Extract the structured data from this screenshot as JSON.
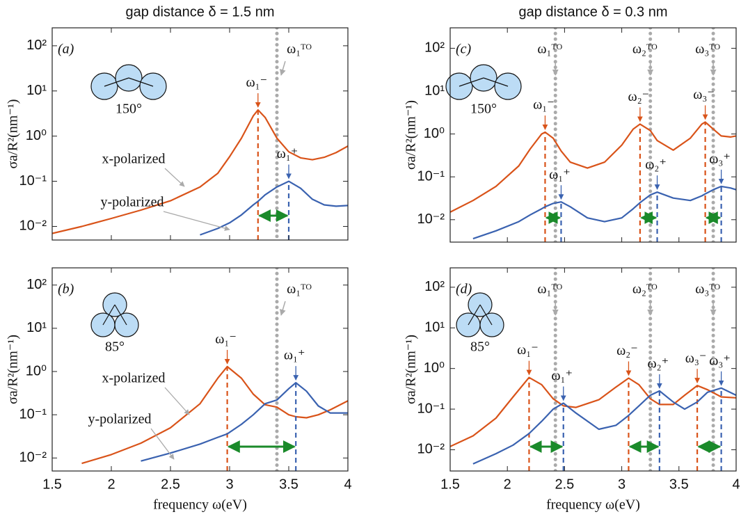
{
  "chart_data": [
    {
      "type": "line",
      "title": "gap distance δ = 1.5 nm",
      "panel_label": "(a)",
      "inset_angle": "150°",
      "y_label": "σa/R²(nm⁻¹)",
      "log_y": true,
      "xlim": [
        1.5,
        4
      ],
      "ylim": [
        0.005,
        250
      ],
      "yticks": [
        {
          "value": 0.01,
          "label": "10⁻²"
        },
        {
          "value": 0.1,
          "label": "10⁻¹"
        },
        {
          "value": 1,
          "label": "10⁰"
        },
        {
          "value": 10,
          "label": "10¹"
        },
        {
          "value": 100,
          "label": "10²"
        }
      ],
      "x": [
        1.5,
        1.75,
        2,
        2.25,
        2.5,
        2.75,
        2.9,
        3.0,
        3.1,
        3.2,
        3.24,
        3.3,
        3.4,
        3.5,
        3.6,
        3.7,
        3.8,
        3.9,
        4.0
      ],
      "series": [
        {
          "name": "x-polarized",
          "color": "#d95319",
          "values": [
            0.007,
            0.01,
            0.015,
            0.023,
            0.037,
            0.075,
            0.15,
            0.35,
            0.9,
            2.8,
            3.8,
            2.6,
            0.9,
            0.45,
            0.33,
            0.3,
            0.34,
            0.43,
            0.6
          ],
          "peaks": [
            {
              "label": "ω₁⁻",
              "x": 3.24,
              "value": 3.8
            }
          ]
        },
        {
          "name": "y-polarized",
          "color": "#3a62b0",
          "values": [
            null,
            null,
            null,
            null,
            null,
            0.0065,
            0.009,
            0.012,
            0.018,
            0.03,
            0.036,
            0.05,
            0.075,
            0.1,
            0.07,
            0.04,
            0.03,
            0.028,
            0.029
          ],
          "peaks": [
            {
              "label": "ω₁⁺",
              "x": 3.5,
              "value": 0.1
            }
          ]
        }
      ],
      "to_lines": [
        {
          "label": "ω₁ᵀᴼ",
          "x": 3.4
        }
      ]
    },
    {
      "type": "line",
      "panel_label": "(b)",
      "inset_angle": "85°",
      "y_label": "σa/R²(nm⁻¹)",
      "x_label": "frequency ω(eV)",
      "log_y": true,
      "xlim": [
        1.5,
        4
      ],
      "ylim": [
        0.005,
        250
      ],
      "xticks": [
        1.5,
        2,
        2.5,
        3,
        3.5,
        4
      ],
      "yticks": [
        {
          "value": 0.01,
          "label": "10⁻²"
        },
        {
          "value": 0.1,
          "label": "10⁻¹"
        },
        {
          "value": 1,
          "label": "10⁰"
        },
        {
          "value": 10,
          "label": "10¹"
        },
        {
          "value": 100,
          "label": "10²"
        }
      ],
      "x": [
        1.5,
        1.75,
        2,
        2.25,
        2.5,
        2.75,
        2.9,
        2.98,
        3.1,
        3.2,
        3.3,
        3.4,
        3.5,
        3.56,
        3.65,
        3.75,
        3.85,
        4.0
      ],
      "series": [
        {
          "name": "x-polarized",
          "color": "#d95319",
          "values": [
            null,
            0.0075,
            0.012,
            0.022,
            0.05,
            0.18,
            0.7,
            1.3,
            0.7,
            0.3,
            0.17,
            0.15,
            0.1,
            0.09,
            0.085,
            0.1,
            0.13,
            0.21
          ],
          "peaks": [
            {
              "label": "ω₁⁻",
              "x": 2.98,
              "value": 1.3
            }
          ]
        },
        {
          "name": "y-polarized",
          "color": "#3a62b0",
          "values": [
            null,
            null,
            null,
            0.0085,
            0.013,
            0.021,
            0.03,
            0.036,
            0.06,
            0.1,
            0.18,
            0.22,
            0.4,
            0.55,
            0.35,
            0.16,
            0.11,
            0.11
          ],
          "peaks": [
            {
              "label": "ω₁⁺",
              "x": 3.56,
              "value": 0.55
            }
          ]
        }
      ],
      "to_lines": [
        {
          "label": "ω₁ᵀᴼ",
          "x": 3.4
        }
      ]
    },
    {
      "type": "line",
      "title": "gap distance δ = 0.3 nm",
      "panel_label": "(c)",
      "inset_angle": "150°",
      "y_label": "σa/R²(nm⁻¹)",
      "log_y": true,
      "xlim": [
        1.5,
        4
      ],
      "ylim": [
        0.003,
        300
      ],
      "yticks": [
        {
          "value": 0.01,
          "label": "10⁻²"
        },
        {
          "value": 0.1,
          "label": "10⁻¹"
        },
        {
          "value": 1,
          "label": "10⁰"
        },
        {
          "value": 10,
          "label": "10¹"
        },
        {
          "value": 100,
          "label": "10²"
        }
      ],
      "x": [
        1.5,
        1.7,
        1.9,
        2.1,
        2.2,
        2.3,
        2.33,
        2.4,
        2.47,
        2.55,
        2.7,
        2.85,
        3.0,
        3.1,
        3.16,
        3.25,
        3.31,
        3.45,
        3.6,
        3.7,
        3.73,
        3.8,
        3.87,
        3.95,
        4.0
      ],
      "series": [
        {
          "color": "#d95319",
          "values": [
            0.015,
            0.028,
            0.06,
            0.18,
            0.45,
            1.0,
            1.1,
            0.8,
            0.4,
            0.22,
            0.16,
            0.22,
            0.55,
            1.3,
            1.7,
            1.2,
            0.7,
            0.42,
            0.8,
            1.7,
            1.9,
            1.3,
            0.9,
            0.85,
            0.9
          ],
          "peaks": [
            {
              "label": "ω₁⁻",
              "x": 2.33,
              "value": 1.1
            },
            {
              "label": "ω₂⁻",
              "x": 3.16,
              "value": 1.7
            },
            {
              "label": "ω₃⁻",
              "x": 3.73,
              "value": 1.9
            }
          ]
        },
        {
          "color": "#3a62b0",
          "values": [
            null,
            0.0036,
            0.0055,
            0.009,
            0.013,
            0.018,
            0.02,
            0.024,
            0.026,
            0.02,
            0.011,
            0.009,
            0.011,
            0.018,
            0.025,
            0.038,
            0.044,
            0.032,
            0.028,
            0.036,
            0.04,
            0.05,
            0.06,
            0.055,
            0.05
          ],
          "peaks": [
            {
              "label": "ω₁⁺",
              "x": 2.47,
              "value": 0.026
            },
            {
              "label": "ω₂⁺",
              "x": 3.31,
              "value": 0.044
            },
            {
              "label": "ω₃⁺",
              "x": 3.87,
              "value": 0.06
            }
          ]
        }
      ],
      "to_lines": [
        {
          "label": "ω₁ᵀᴼ",
          "x": 2.42
        },
        {
          "label": "ω₂ᵀᴼ",
          "x": 3.25
        },
        {
          "label": "ω₃ᵀᴼ",
          "x": 3.8
        }
      ]
    },
    {
      "type": "line",
      "panel_label": "(d)",
      "inset_angle": "85°",
      "y_label": "σa/R²(nm⁻¹)",
      "x_label": "frequency ω(eV)",
      "log_y": true,
      "xlim": [
        1.5,
        4
      ],
      "ylim": [
        0.003,
        300
      ],
      "xticks": [
        1.5,
        2,
        2.5,
        3,
        3.5,
        4
      ],
      "yticks": [
        {
          "value": 0.01,
          "label": "10⁻²"
        },
        {
          "value": 0.1,
          "label": "10⁻¹"
        },
        {
          "value": 1,
          "label": "10⁰"
        },
        {
          "value": 10,
          "label": "10¹"
        },
        {
          "value": 100,
          "label": "10²"
        }
      ],
      "x": [
        1.5,
        1.7,
        1.9,
        2.05,
        2.19,
        2.3,
        2.4,
        2.49,
        2.6,
        2.8,
        2.95,
        3.06,
        3.15,
        3.25,
        3.33,
        3.45,
        3.55,
        3.66,
        3.75,
        3.87,
        4.0
      ],
      "series": [
        {
          "color": "#d95319",
          "values": [
            0.012,
            0.022,
            0.06,
            0.2,
            0.6,
            0.4,
            0.18,
            0.12,
            0.11,
            0.17,
            0.35,
            0.58,
            0.4,
            0.18,
            0.13,
            0.13,
            0.22,
            0.38,
            0.3,
            0.2,
            0.19
          ],
          "peaks": [
            {
              "label": "ω₁⁻",
              "x": 2.19,
              "value": 0.6
            },
            {
              "label": "ω₂⁻",
              "x": 3.06,
              "value": 0.58
            },
            {
              "label": "ω₃⁻",
              "x": 3.66,
              "value": 0.38
            }
          ]
        },
        {
          "color": "#3a62b0",
          "values": [
            null,
            0.0045,
            0.008,
            0.013,
            0.025,
            0.05,
            0.1,
            0.14,
            0.08,
            0.032,
            0.04,
            0.07,
            0.12,
            0.22,
            0.28,
            0.15,
            0.1,
            0.15,
            0.26,
            0.33,
            0.22
          ],
          "peaks": [
            {
              "label": "ω₁⁺",
              "x": 2.49,
              "value": 0.14
            },
            {
              "label": "ω₂⁺",
              "x": 3.33,
              "value": 0.28
            },
            {
              "label": "ω₃⁺",
              "x": 3.87,
              "value": 0.33
            }
          ]
        }
      ],
      "to_lines": [
        {
          "label": "ω₁ᵀᴼ",
          "x": 2.42
        },
        {
          "label": "ω₂ᵀᴼ",
          "x": 3.25
        },
        {
          "label": "ω₃ᵀᴼ",
          "x": 3.8
        }
      ]
    }
  ]
}
